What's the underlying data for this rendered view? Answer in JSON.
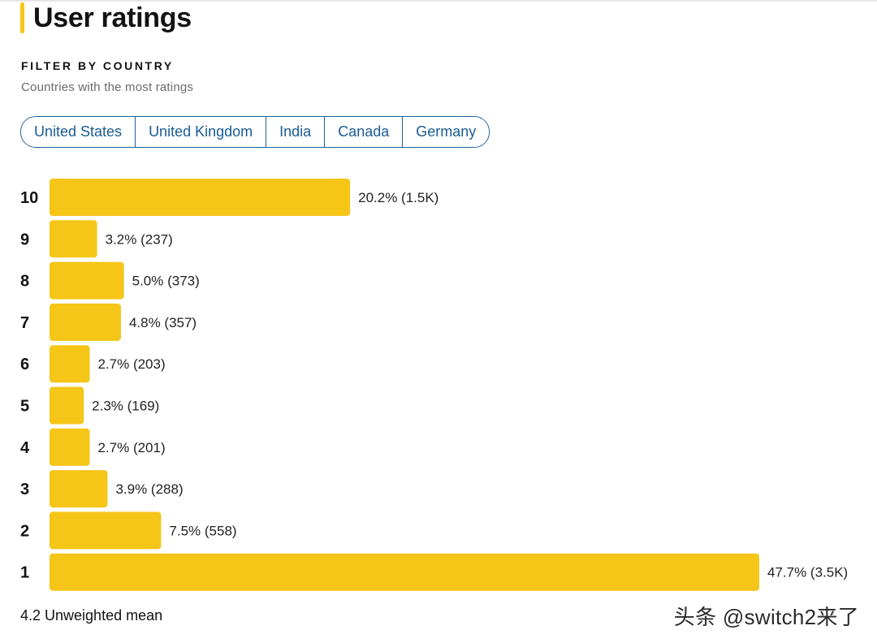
{
  "header": {
    "title": "User ratings"
  },
  "filter": {
    "heading": "FILTER BY COUNTRY",
    "subheading": "Countries with the most ratings",
    "countries": [
      "United States",
      "United Kingdom",
      "India",
      "Canada",
      "Germany"
    ]
  },
  "colors": {
    "accent": "#f5c518",
    "bar": "#f5c518",
    "link": "#1a5b96"
  },
  "chart_data": {
    "type": "bar",
    "orientation": "horizontal",
    "categories": [
      "10",
      "9",
      "8",
      "7",
      "6",
      "5",
      "4",
      "3",
      "2",
      "1"
    ],
    "values": [
      20.2,
      3.2,
      5.0,
      4.8,
      2.7,
      2.3,
      2.7,
      3.9,
      7.5,
      47.7
    ],
    "value_labels": [
      "20.2% (1.5K)",
      "3.2% (237)",
      "5.0% (373)",
      "4.8% (357)",
      "2.7% (203)",
      "2.3% (169)",
      "2.7% (201)",
      "3.9% (288)",
      "7.5% (558)",
      "47.7% (3.5K)"
    ],
    "unit": "%",
    "xlim": [
      0,
      47.7
    ],
    "grid": false,
    "legend": "none"
  },
  "summary": {
    "mean_text": "4.2 Unweighted mean"
  },
  "watermark": {
    "text": "头条 @switch2来了"
  }
}
